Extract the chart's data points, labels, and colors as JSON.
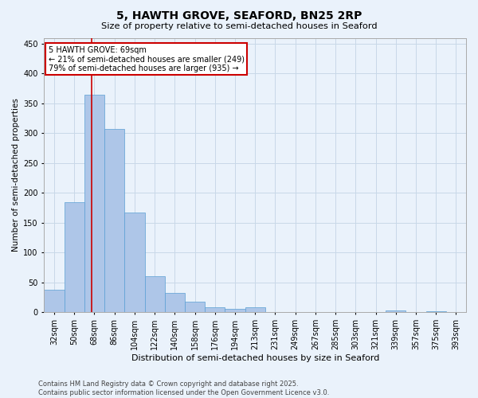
{
  "title": "5, HAWTH GROVE, SEAFORD, BN25 2RP",
  "subtitle": "Size of property relative to semi-detached houses in Seaford",
  "xlabel": "Distribution of semi-detached houses by size in Seaford",
  "ylabel": "Number of semi-detached properties",
  "categories": [
    "32sqm",
    "50sqm",
    "68sqm",
    "86sqm",
    "104sqm",
    "122sqm",
    "140sqm",
    "158sqm",
    "176sqm",
    "194sqm",
    "213sqm",
    "231sqm",
    "249sqm",
    "267sqm",
    "285sqm",
    "303sqm",
    "321sqm",
    "339sqm",
    "357sqm",
    "375sqm",
    "393sqm"
  ],
  "values": [
    38,
    184,
    365,
    307,
    167,
    60,
    33,
    18,
    8,
    6,
    8,
    0,
    0,
    0,
    0,
    0,
    0,
    3,
    0,
    2,
    0
  ],
  "bar_color": "#aec6e8",
  "bar_edge_color": "#5a9fd4",
  "grid_color": "#c8d8e8",
  "background_color": "#eaf2fb",
  "annotation_text": "5 HAWTH GROVE: 69sqm\n← 21% of semi-detached houses are smaller (249)\n79% of semi-detached houses are larger (935) →",
  "annotation_box_color": "#ffffff",
  "annotation_box_edge_color": "#cc0000",
  "redline_x": 1.85,
  "ylim": [
    0,
    460
  ],
  "yticks": [
    0,
    50,
    100,
    150,
    200,
    250,
    300,
    350,
    400,
    450
  ],
  "footer_line1": "Contains HM Land Registry data © Crown copyright and database right 2025.",
  "footer_line2": "Contains public sector information licensed under the Open Government Licence v3.0."
}
